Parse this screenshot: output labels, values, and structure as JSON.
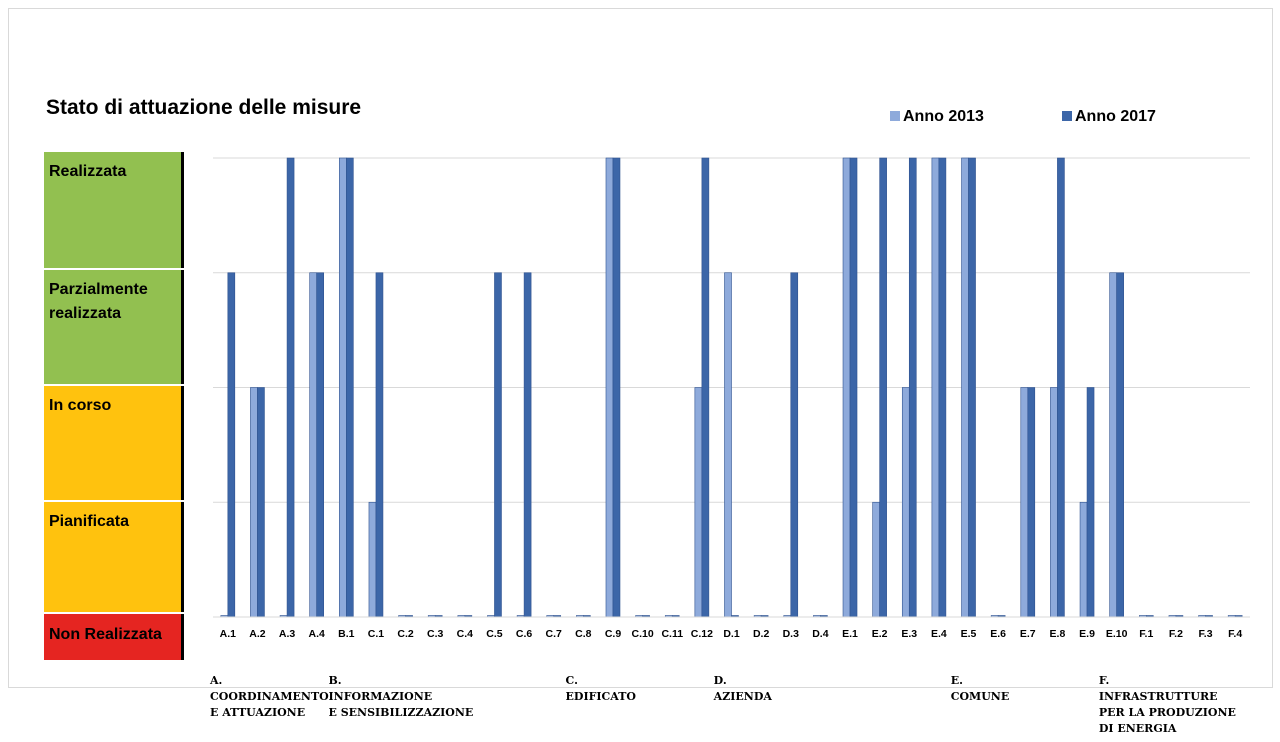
{
  "chart_data": {
    "type": "bar",
    "title": "Stato di attuazione  delle misure",
    "xlabel": "",
    "ylabel": "",
    "ylim": [
      0,
      4
    ],
    "grid": true,
    "legend_position": "top-right",
    "y_levels": [
      {
        "value": 4,
        "label": "Realizzata",
        "color": "#92c050"
      },
      {
        "value": 3,
        "label": "Parzialmente realizzata",
        "color": "#92c050"
      },
      {
        "value": 2,
        "label": "In corso",
        "color": "#ffc20e"
      },
      {
        "value": 1,
        "label": "Pianificata",
        "color": "#ffc20e"
      },
      {
        "value": 0,
        "label": "Non Realizzata",
        "color": "#e52521"
      }
    ],
    "categories": [
      "A.1",
      "A.2",
      "A.3",
      "A.4",
      "B.1",
      "C.1",
      "C.2",
      "C.3",
      "C.4",
      "C.5",
      "C.6",
      "C.7",
      "C.8",
      "C.9",
      "C.10",
      "C.11",
      "C.12",
      "D.1",
      "D.2",
      "D.3",
      "D.4",
      "E.1",
      "E.2",
      "E.3",
      "E.4",
      "E.5",
      "E.6",
      "E.7",
      "E.8",
      "E.9",
      "E.10",
      "F.1",
      "F.2",
      "F.3",
      "F.4"
    ],
    "series": [
      {
        "name": "Anno 2013",
        "color": "#8eaadb",
        "values": [
          0,
          2,
          0,
          3,
          4,
          1,
          0,
          0,
          0,
          0,
          0,
          0,
          0,
          4,
          0,
          0,
          2,
          3,
          0,
          0,
          0,
          4,
          1,
          2,
          4,
          4,
          0,
          2,
          2,
          1,
          3,
          0,
          0,
          0,
          0
        ]
      },
      {
        "name": "Anno 2017",
        "color": "#3c66a8",
        "values": [
          3,
          2,
          4,
          3,
          4,
          3,
          0,
          0,
          0,
          3,
          3,
          0,
          0,
          4,
          0,
          0,
          4,
          0,
          0,
          3,
          0,
          4,
          4,
          4,
          4,
          4,
          0,
          2,
          4,
          2,
          3,
          0,
          0,
          0,
          0
        ]
      }
    ],
    "groups": [
      {
        "lines": [
          "A.",
          "Coordinamento",
          "e attuazione"
        ],
        "first": 0
      },
      {
        "lines": [
          "B.",
          "Informazione",
          "e sensibilizzazione"
        ],
        "first": 4
      },
      {
        "lines": [
          "C.",
          "Edificato"
        ],
        "first": 12
      },
      {
        "lines": [
          "D.",
          "Azienda"
        ],
        "first": 17
      },
      {
        "lines": [
          "E.",
          "Comune"
        ],
        "first": 25
      },
      {
        "lines": [
          "F.",
          "Infrastrutture",
          "per la produzione",
          "di energia"
        ],
        "first": 30
      }
    ]
  }
}
